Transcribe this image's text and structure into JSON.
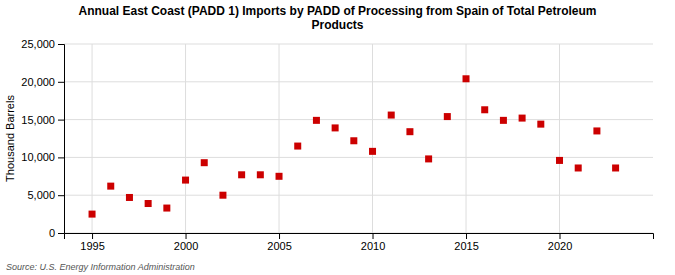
{
  "chart_data": {
    "type": "scatter",
    "title": "Annual East Coast (PADD 1) Imports by PADD of Processing from Spain of Total Petroleum\nProducts",
    "ylabel": "Thousand Barrels",
    "annotation": "Source: U.S. Energy Information Administration",
    "x": [
      1995,
      1996,
      1997,
      1998,
      1999,
      2000,
      2001,
      2002,
      2003,
      2004,
      2005,
      2006,
      2007,
      2008,
      2009,
      2010,
      2011,
      2012,
      2013,
      2014,
      2015,
      2016,
      2017,
      2018,
      2019,
      2020,
      2021,
      2022,
      2023
    ],
    "values": [
      2500,
      6200,
      4700,
      3900,
      3300,
      7000,
      9300,
      5000,
      7700,
      7700,
      7500,
      11500,
      14900,
      13900,
      12200,
      10800,
      15600,
      13400,
      9800,
      15400,
      20400,
      16300,
      14900,
      15200,
      14400,
      9600,
      8600,
      13500,
      8600
    ],
    "color": "#cc0000",
    "marker": "square",
    "xlim": [
      1993.5,
      2025
    ],
    "xticks": [
      1995,
      2000,
      2005,
      2010,
      2015,
      2020
    ],
    "ylim": [
      0,
      25000
    ],
    "yticks": [
      0,
      {
        "value": 5000,
        "label": "5,000"
      },
      {
        "value": 10000,
        "label": "10,000"
      },
      {
        "value": 15000,
        "label": "15,000"
      },
      {
        "value": 20000,
        "label": "20,000"
      },
      {
        "value": 25000,
        "label": "25,000"
      }
    ],
    "grid": true
  }
}
